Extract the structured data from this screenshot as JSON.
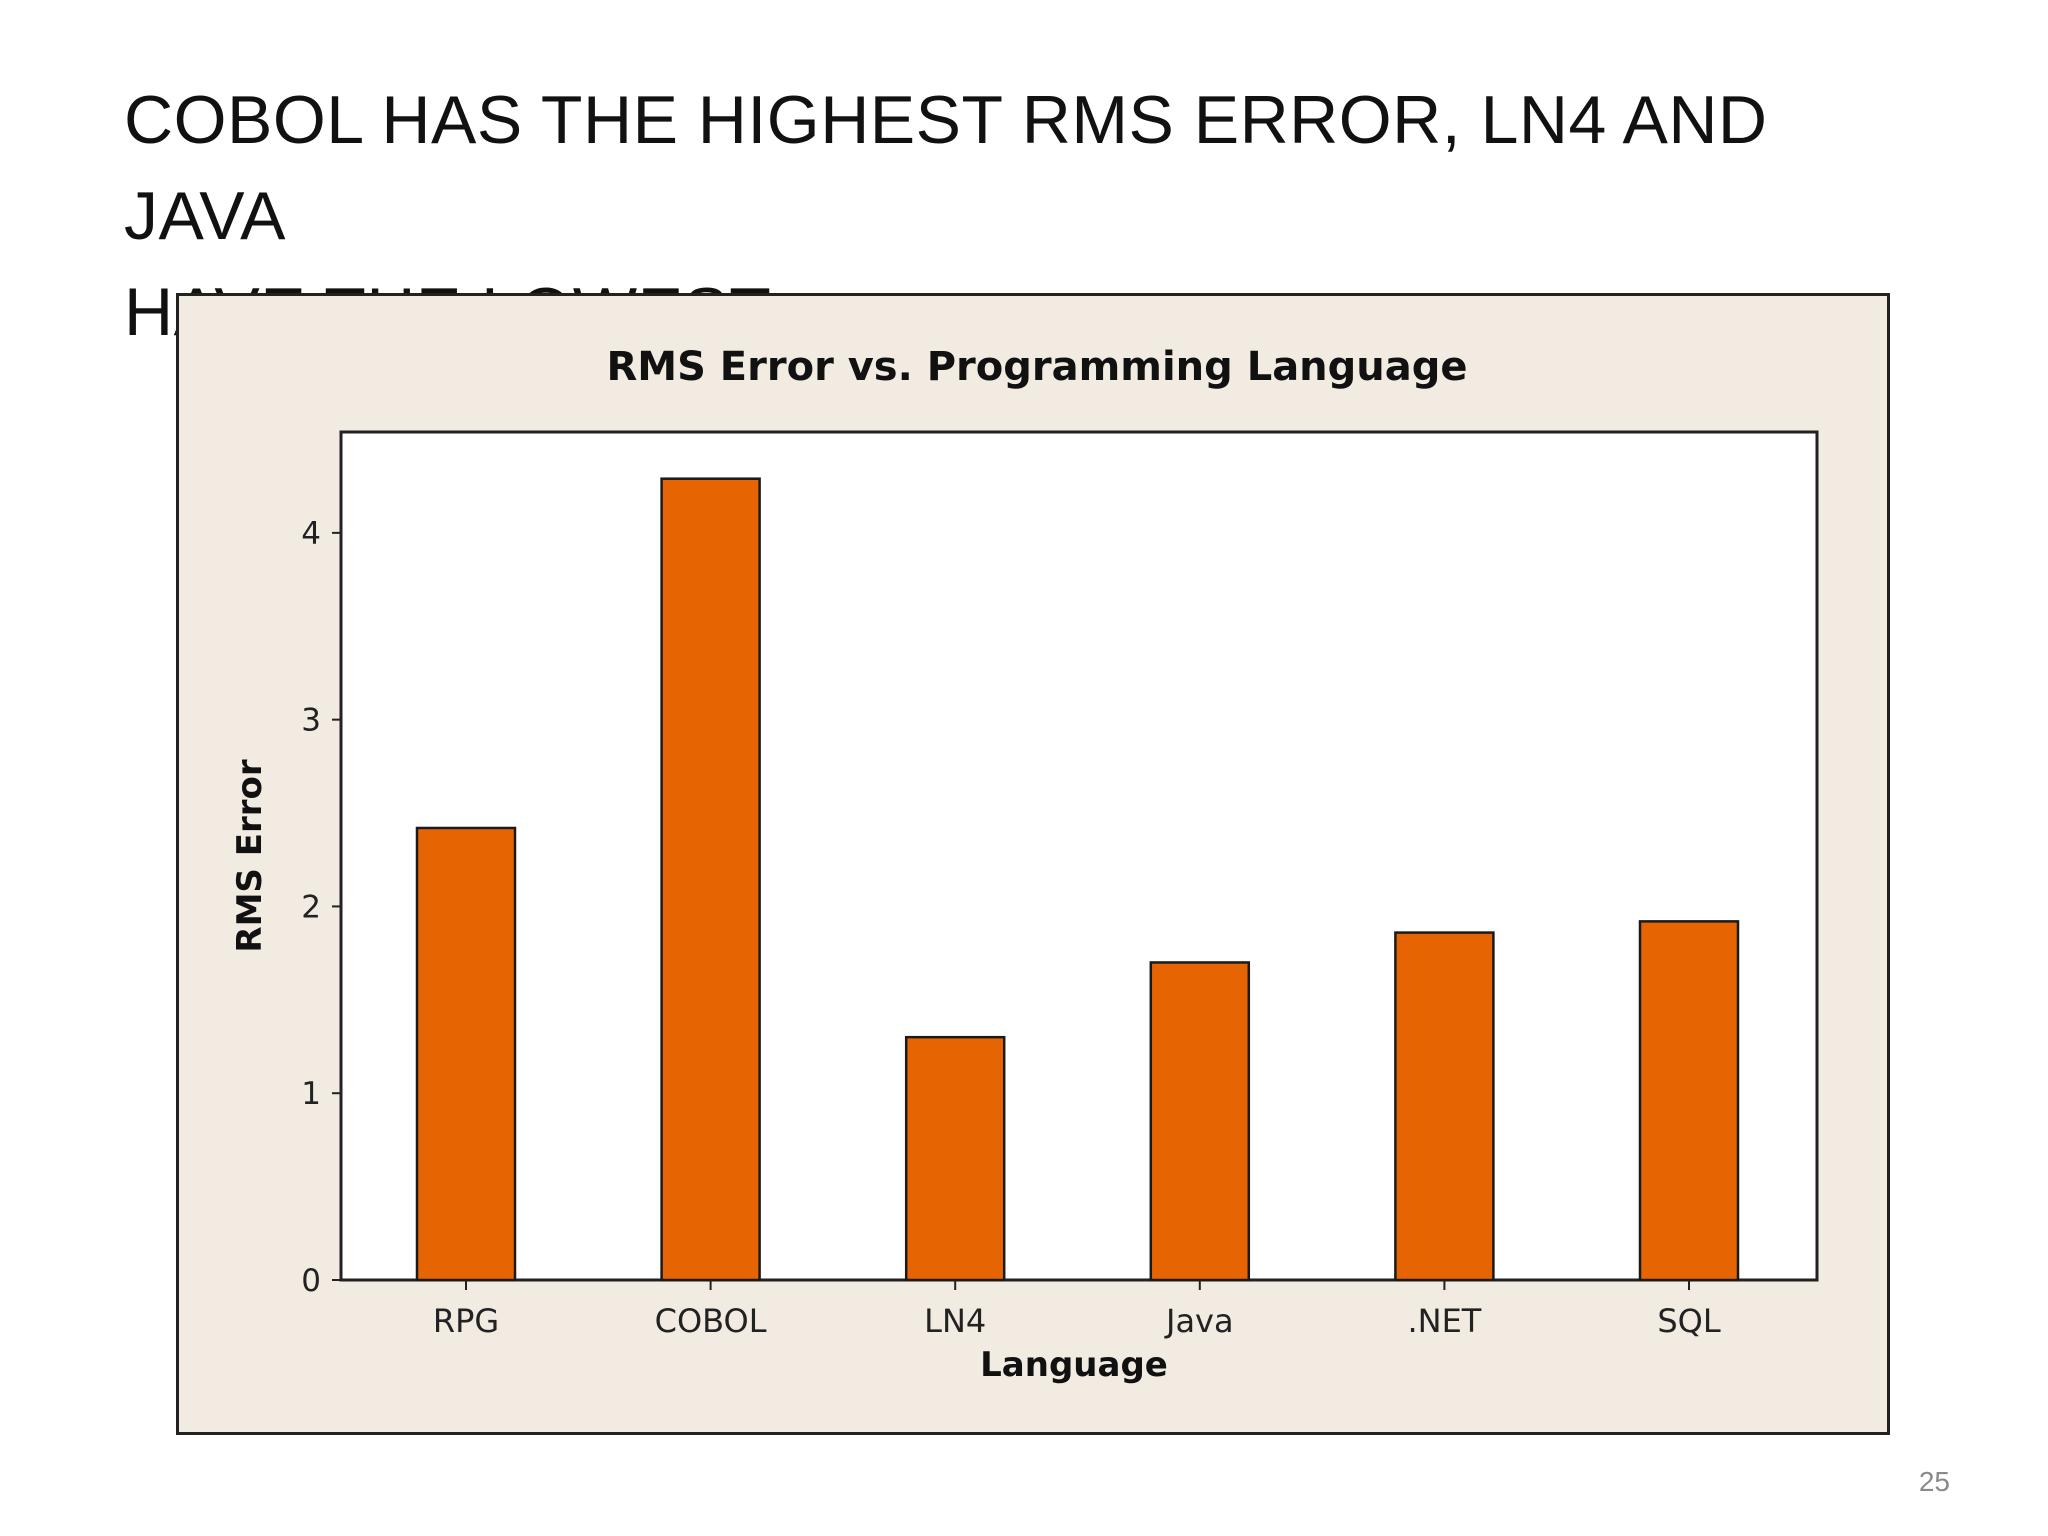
{
  "slide": {
    "title_line1": "COBOL HAS THE HIGHEST RMS ERROR, LN4 AND JAVA",
    "title_line2": "HAVE THE LOWEST",
    "page_number": "25"
  },
  "colors": {
    "bar_fill": "#e66502",
    "frame_background": "#f1ebe2",
    "plot_background": "#ffffff"
  },
  "chart_data": {
    "type": "bar",
    "title": "RMS Error vs. Programming Language",
    "xlabel": "Language",
    "ylabel": "RMS Error",
    "categories": [
      "RPG",
      "COBOL",
      "LN4",
      "Java",
      ".NET",
      "SQL"
    ],
    "values": [
      2.42,
      4.29,
      1.3,
      1.7,
      1.86,
      1.92
    ],
    "ylim": [
      0,
      4.54
    ],
    "yticks": [
      "0",
      "1",
      "2",
      "3",
      "4"
    ],
    "grid": false,
    "legend": "none"
  }
}
